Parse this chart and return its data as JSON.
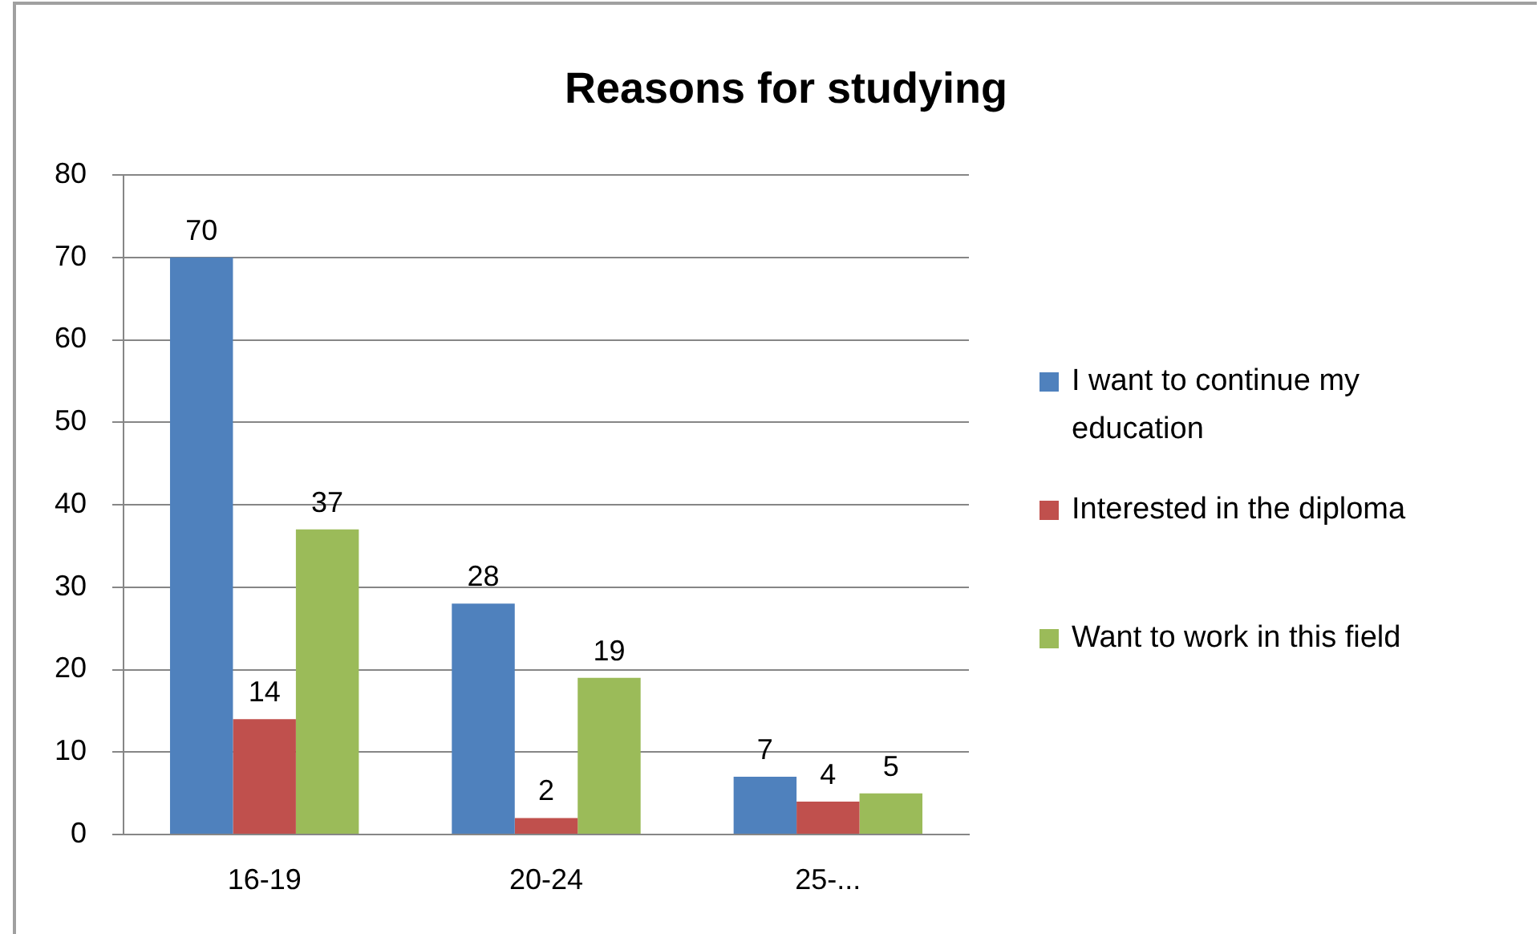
{
  "chart_data": {
    "type": "bar",
    "title": "Reasons for studying",
    "categories": [
      "16-19",
      "20-24",
      "25-..."
    ],
    "series": [
      {
        "name": "I want to continue my education",
        "color": "#4f81bd",
        "values": [
          70,
          28,
          7
        ]
      },
      {
        "name": "Interested in the diploma",
        "color": "#c0504d",
        "values": [
          14,
          2,
          4
        ]
      },
      {
        "name": "Want to work in this field",
        "color": "#9bbb59",
        "values": [
          37,
          19,
          5
        ]
      }
    ],
    "ylim": [
      0,
      80
    ],
    "yticks": [
      0,
      10,
      20,
      30,
      40,
      50,
      60,
      70,
      80
    ],
    "grid": "y",
    "legend": "right",
    "data_labels": true
  }
}
